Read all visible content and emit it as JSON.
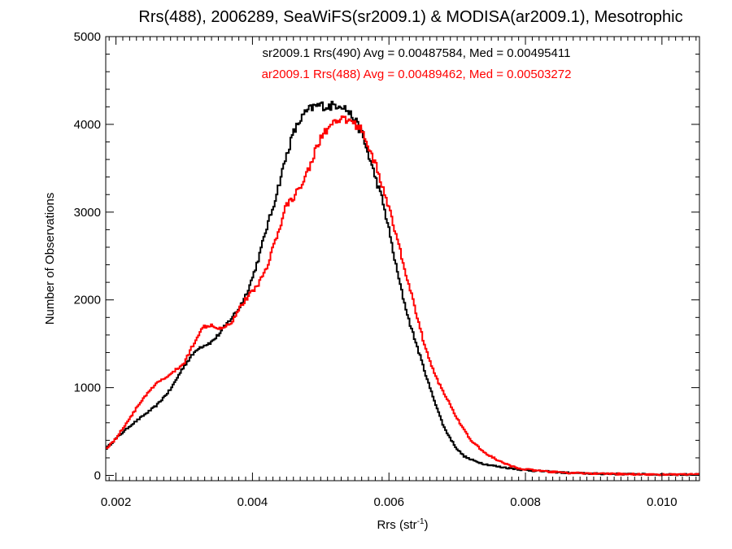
{
  "chart_data": {
    "type": "line",
    "title": "Rrs(488), 2006289, SeaWiFS(sr2009.1) & MODISA(ar2009.1), Mesotrophic",
    "xlabel": {
      "base": "Rrs (str",
      "sup": "-1",
      "end": ")"
    },
    "ylabel": "Number of Observations",
    "xlim": [
      0.00185,
      0.01055
    ],
    "ylim": [
      -60,
      5000
    ],
    "x_ticks": [
      0.002,
      0.004,
      0.006,
      0.008,
      0.01
    ],
    "x_tick_labels": [
      "0.002",
      "0.004",
      "0.006",
      "0.008",
      "0.010"
    ],
    "y_ticks": [
      0,
      1000,
      2000,
      3000,
      4000,
      5000
    ],
    "y_tick_labels": [
      "0",
      "1000",
      "2000",
      "3000",
      "4000",
      "5000"
    ],
    "annotations": [
      {
        "text": "sr2009.1 Rrs(490) Avg = 0.00487584, Med = 0.00495411",
        "color": "#000000"
      },
      {
        "text": "ar2009.1 Rrs(488) Avg = 0.00489462, Med = 0.00503272",
        "color": "#ff0000"
      }
    ],
    "series": [
      {
        "color": "#000000",
        "step": true,
        "x": [
          0.00185,
          0.002,
          0.0022,
          0.0024,
          0.0026,
          0.0028,
          0.003,
          0.0032,
          0.0034,
          0.0035,
          0.0036,
          0.0037,
          0.0038,
          0.0039,
          0.004,
          0.0041,
          0.0042,
          0.0043,
          0.0044,
          0.0045,
          0.0046,
          0.0047,
          0.0048,
          0.0049,
          0.005,
          0.0051,
          0.0052,
          0.0053,
          0.0054,
          0.0055,
          0.0056,
          0.0057,
          0.0058,
          0.0059,
          0.006,
          0.0061,
          0.0062,
          0.0063,
          0.0064,
          0.0065,
          0.0066,
          0.0067,
          0.0068,
          0.0069,
          0.007,
          0.0071,
          0.0072,
          0.0074,
          0.0076,
          0.0078,
          0.008,
          0.0082,
          0.0084,
          0.0086,
          0.009,
          0.0095,
          0.01,
          0.01055
        ],
        "y": [
          300,
          420,
          560,
          680,
          800,
          980,
          1250,
          1450,
          1520,
          1600,
          1700,
          1800,
          1900,
          2050,
          2250,
          2500,
          2800,
          3050,
          3350,
          3650,
          3900,
          4050,
          4150,
          4200,
          4220,
          4200,
          4220,
          4230,
          4150,
          4050,
          3900,
          3650,
          3400,
          3150,
          2800,
          2400,
          2050,
          1750,
          1500,
          1250,
          1000,
          780,
          560,
          420,
          300,
          220,
          180,
          130,
          100,
          80,
          60,
          50,
          40,
          30,
          20,
          15,
          10,
          10
        ]
      },
      {
        "color": "#ff0000",
        "step": true,
        "x": [
          0.00185,
          0.002,
          0.0022,
          0.0024,
          0.0026,
          0.0028,
          0.003,
          0.0032,
          0.0033,
          0.0034,
          0.0035,
          0.0036,
          0.0037,
          0.0038,
          0.0039,
          0.004,
          0.0041,
          0.0042,
          0.0043,
          0.0044,
          0.0045,
          0.0046,
          0.0047,
          0.0048,
          0.0049,
          0.005,
          0.0051,
          0.0052,
          0.0053,
          0.0054,
          0.0055,
          0.0056,
          0.0057,
          0.0058,
          0.0059,
          0.006,
          0.0061,
          0.0062,
          0.0063,
          0.0064,
          0.0065,
          0.0066,
          0.0067,
          0.0068,
          0.0069,
          0.007,
          0.0071,
          0.0072,
          0.0073,
          0.0074,
          0.0076,
          0.0078,
          0.008,
          0.0082,
          0.0084,
          0.0086,
          0.009,
          0.0095,
          0.01,
          0.01055
        ],
        "y": [
          300,
          420,
          650,
          880,
          1050,
          1150,
          1280,
          1600,
          1700,
          1720,
          1680,
          1700,
          1750,
          1900,
          2000,
          2100,
          2200,
          2350,
          2600,
          2800,
          3100,
          3150,
          3300,
          3450,
          3650,
          3850,
          3950,
          4000,
          4050,
          4050,
          4000,
          3950,
          3750,
          3550,
          3300,
          3050,
          2750,
          2450,
          2150,
          1850,
          1550,
          1300,
          1100,
          950,
          800,
          650,
          520,
          400,
          330,
          260,
          170,
          100,
          70,
          50,
          40,
          30,
          20,
          15,
          10,
          10
        ]
      }
    ]
  }
}
